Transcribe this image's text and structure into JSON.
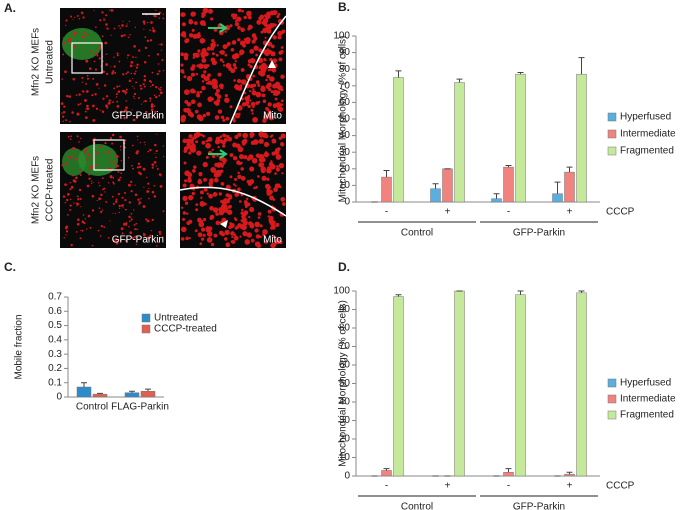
{
  "panel_a": {
    "label": "A.",
    "rows": [
      {
        "lines": [
          "Mfn2 KO MEFs",
          "Untreated"
        ]
      },
      {
        "lines": [
          "Mfn2 KO MEFs",
          "CCCP-treated"
        ]
      }
    ],
    "image_labels": [
      "GFP-Parkin",
      "Mito"
    ]
  },
  "chart_data": [
    {
      "type": "bar",
      "panel_label": "B.",
      "ylabel": "Mitochondrial Morphology (% of cells)",
      "categories": [
        "-",
        "+",
        "-",
        "+"
      ],
      "groups": [
        "Control",
        "GFP-Parkin"
      ],
      "x_annotation": "CCCP",
      "ylim": [
        0,
        100
      ],
      "yticks": [
        0,
        10,
        20,
        30,
        40,
        50,
        60,
        70,
        80,
        90,
        100
      ],
      "legend": "right",
      "series": [
        {
          "name": "Hyperfused",
          "color": "#5aaee0",
          "values": [
            0,
            8,
            2,
            5
          ],
          "errors": [
            0,
            3,
            3,
            7
          ]
        },
        {
          "name": "Intermediate",
          "color": "#f0837d",
          "values": [
            15,
            20,
            21,
            18
          ],
          "errors": [
            4,
            0,
            1,
            3
          ]
        },
        {
          "name": "Fragmented",
          "color": "#c5e99b",
          "values": [
            75,
            72,
            77,
            77
          ],
          "errors": [
            4,
            2,
            1,
            10
          ]
        }
      ]
    },
    {
      "type": "bar",
      "panel_label": "C.",
      "ylabel": "Mobile fraction",
      "categories": [
        "Control",
        "FLAG-Parkin"
      ],
      "ylim": [
        0,
        0.7
      ],
      "yticks": [
        0,
        0.1,
        0.2,
        0.3,
        0.4,
        0.5,
        0.6,
        0.7
      ],
      "legend": "upper right",
      "series": [
        {
          "name": "Untreated",
          "color": "#2e8bc9",
          "values": [
            0.07,
            0.03
          ],
          "errors": [
            0.03,
            0.01
          ]
        },
        {
          "name": "CCCP-treated",
          "color": "#e0604f",
          "values": [
            0.02,
            0.04
          ],
          "errors": [
            0.005,
            0.015
          ]
        }
      ]
    },
    {
      "type": "bar",
      "panel_label": "D.",
      "ylabel": "Mitochondrial Morphology (% of cells)",
      "categories": [
        "-",
        "+",
        "-",
        "+"
      ],
      "groups": [
        "Control",
        "GFP-Parkin"
      ],
      "x_annotation": "CCCP",
      "ylim": [
        0,
        100
      ],
      "yticks": [
        0,
        10,
        20,
        30,
        40,
        50,
        60,
        70,
        80,
        90,
        100
      ],
      "legend": "right",
      "series": [
        {
          "name": "Hyperfused",
          "color": "#5aaee0",
          "values": [
            0,
            0,
            0,
            0
          ],
          "errors": [
            0,
            0,
            0,
            0
          ]
        },
        {
          "name": "Intermediate",
          "color": "#f0837d",
          "values": [
            3,
            0,
            2,
            1
          ],
          "errors": [
            1,
            0,
            2,
            1
          ]
        },
        {
          "name": "Fragmented",
          "color": "#c5e99b",
          "values": [
            97,
            100,
            98,
            99
          ],
          "errors": [
            1,
            0,
            2,
            1
          ]
        }
      ]
    }
  ]
}
